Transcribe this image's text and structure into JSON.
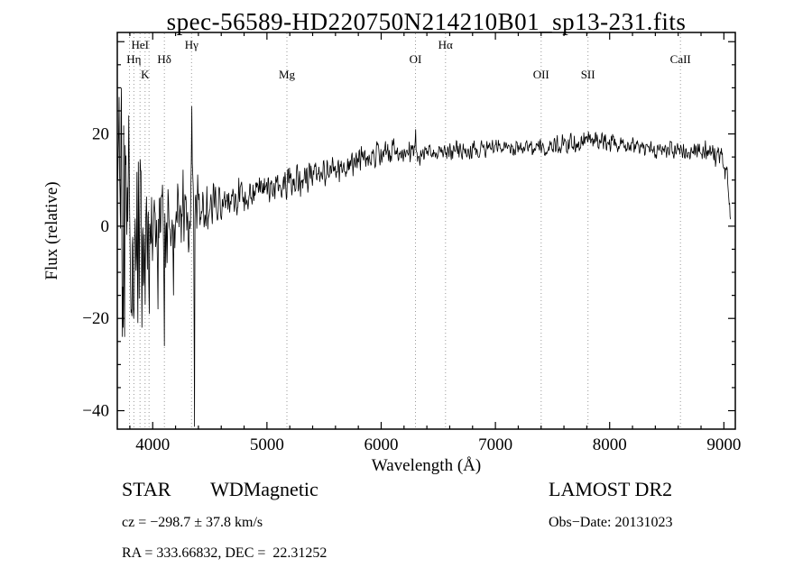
{
  "chart_data": {
    "type": "line",
    "title": "spec-56589-HD220750N214210B01_sp13-231.fits",
    "xlabel": "Wavelength (Å)",
    "ylabel": "Flux (relative)",
    "xlim": [
      3690,
      9100
    ],
    "ylim": [
      -44,
      42
    ],
    "xticks": [
      4000,
      5000,
      6000,
      7000,
      8000,
      9000
    ],
    "yticks": [
      -40,
      -20,
      0,
      20
    ],
    "x_minor_step": 200,
    "y_minor_step": 5,
    "grid": false,
    "legend": "none",
    "line_color": "#000000",
    "marker_line_color": "#999999",
    "spectral_lines": [
      {
        "label": "Hη",
        "wavelength": 3835,
        "row": 2
      },
      {
        "label": "HeI",
        "wavelength": 3889,
        "row": 1
      },
      {
        "label": "K",
        "wavelength": 3933,
        "row": 3
      },
      {
        "label": "",
        "wavelength": 3797,
        "row": 2
      },
      {
        "label": "",
        "wavelength": 3968,
        "row": 3
      },
      {
        "label": "Hδ",
        "wavelength": 4102,
        "row": 2
      },
      {
        "label": "Hγ",
        "wavelength": 4340,
        "row": 1
      },
      {
        "label": "Mg",
        "wavelength": 5175,
        "row": 3
      },
      {
        "label": "OI",
        "wavelength": 6300,
        "row": 2
      },
      {
        "label": "Hα",
        "wavelength": 6563,
        "row": 1
      },
      {
        "label": "OII",
        "wavelength": 7400,
        "row": 3
      },
      {
        "label": "SII",
        "wavelength": 7810,
        "row": 3
      },
      {
        "label": "CaII",
        "wavelength": 8620,
        "row": 2
      }
    ],
    "envelope": [
      [
        3694,
        5,
        14
      ],
      [
        3710,
        3,
        22
      ],
      [
        3740,
        1,
        24
      ],
      [
        3780,
        0,
        18
      ],
      [
        3820,
        -1,
        15
      ],
      [
        3870,
        0,
        14
      ],
      [
        3920,
        0,
        12
      ],
      [
        3970,
        1,
        11
      ],
      [
        4020,
        1,
        10
      ],
      [
        4080,
        1,
        9
      ],
      [
        4150,
        2,
        8
      ],
      [
        4230,
        2.5,
        7
      ],
      [
        4300,
        3,
        8
      ],
      [
        4360,
        3,
        9
      ],
      [
        4420,
        3.5,
        5
      ],
      [
        4500,
        4,
        4
      ],
      [
        4650,
        5.5,
        3.5
      ],
      [
        4800,
        7,
        3.2
      ],
      [
        4950,
        8,
        3
      ],
      [
        5100,
        9,
        3.2
      ],
      [
        5250,
        10,
        3.5
      ],
      [
        5400,
        11,
        2.8
      ],
      [
        5550,
        12,
        2.5
      ],
      [
        5700,
        13,
        2.4
      ],
      [
        5850,
        14.5,
        2.4
      ],
      [
        5980,
        16,
        2.6
      ],
      [
        6080,
        16.5,
        2.4
      ],
      [
        6200,
        15.8,
        2
      ],
      [
        6350,
        15.5,
        2
      ],
      [
        6500,
        16,
        1.8
      ],
      [
        6650,
        16.2,
        1.8
      ],
      [
        6800,
        16.6,
        1.7
      ],
      [
        7000,
        17,
        1.6
      ],
      [
        7200,
        16.8,
        1.7
      ],
      [
        7400,
        17,
        1.9
      ],
      [
        7600,
        17.6,
        2
      ],
      [
        7800,
        18.4,
        2.2
      ],
      [
        7950,
        18.8,
        2.3
      ],
      [
        8100,
        17.8,
        1.8
      ],
      [
        8250,
        17.2,
        1.6
      ],
      [
        8450,
        16.5,
        1.6
      ],
      [
        8650,
        16.2,
        1.7
      ],
      [
        8800,
        16.2,
        2
      ],
      [
        8950,
        16,
        2.6
      ],
      [
        9020,
        12,
        3
      ],
      [
        9060,
        2,
        1.5
      ]
    ],
    "spikes": [
      [
        3705,
        28
      ],
      [
        3727,
        30
      ],
      [
        3742,
        -22
      ],
      [
        3755,
        -24
      ],
      [
        3788,
        24
      ],
      [
        3835,
        -20
      ],
      [
        3870,
        -21
      ],
      [
        3905,
        -22
      ],
      [
        3933,
        -17
      ],
      [
        3970,
        -19
      ],
      [
        4045,
        -18
      ],
      [
        4101,
        -26
      ],
      [
        4180,
        -15
      ],
      [
        4340,
        26
      ],
      [
        4364,
        -43.5
      ],
      [
        6300,
        21
      ],
      [
        9056,
        1.5
      ]
    ],
    "noise_seed": 20131023,
    "sample_step": 4,
    "data_range": [
      3694,
      9060
    ]
  },
  "footer": {
    "class_line": "STAR        WDMagnetic",
    "survey": "LAMOST DR2",
    "cz_line": "cz = −298.7 ± 37.8 km/s",
    "obs_date": "Obs−Date: 20131023",
    "coords": "RA = 333.66832, DEC =  22.31252"
  }
}
